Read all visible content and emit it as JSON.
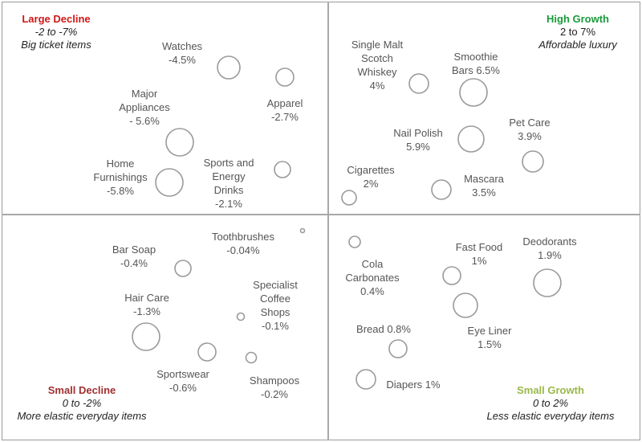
{
  "quadrants": {
    "large_decline": {
      "title": "Large Decline",
      "range": "-2 to -7%",
      "subtitle": "Big ticket items",
      "color": "#d01818"
    },
    "high_growth": {
      "title": "High Growth",
      "range": "2 to 7%",
      "subtitle": "Affordable luxury",
      "color": "#1a9a3a"
    },
    "small_decline": {
      "title": "Small Decline",
      "range": "0 to -2%",
      "subtitle": "More elastic everyday items",
      "color": "#a03030"
    },
    "small_growth": {
      "title": "Small Growth",
      "range": "0 to 2%",
      "subtitle": "Less elastic everyday items",
      "color": "#9ab84a"
    }
  },
  "items": {
    "watches": {
      "lines": [
        "Watches",
        "-4.5%"
      ]
    },
    "apparel": {
      "lines": [
        "Apparel",
        "-2.7%"
      ]
    },
    "major_appliances": {
      "lines": [
        "Major",
        "Appliances",
        "- 5.6%"
      ]
    },
    "home_furnishings": {
      "lines": [
        "Home",
        "Furnishings",
        "-5.8%"
      ]
    },
    "sports_energy_drinks": {
      "lines": [
        "Sports and",
        "Energy",
        "Drinks",
        "-2.1%"
      ]
    },
    "scotch_whiskey": {
      "lines": [
        "Single Malt",
        "Scotch",
        "Whiskey",
        "4%"
      ]
    },
    "smoothie_bars": {
      "lines": [
        "Smoothie",
        "Bars 6.5%"
      ]
    },
    "nail_polish": {
      "lines": [
        "Nail Polish",
        "5.9%"
      ]
    },
    "pet_care": {
      "lines": [
        "Pet Care",
        "3.9%"
      ]
    },
    "cigarettes": {
      "lines": [
        "Cigarettes",
        "2%"
      ]
    },
    "mascara": {
      "lines": [
        "Mascara",
        "3.5%"
      ]
    },
    "toothbrushes": {
      "lines": [
        "Toothbrushes",
        "-0.04%"
      ]
    },
    "bar_soap": {
      "lines": [
        "Bar Soap",
        "-0.4%"
      ]
    },
    "hair_care": {
      "lines": [
        "Hair Care",
        "-1.3%"
      ]
    },
    "specialist_coffee": {
      "lines": [
        "Specialist",
        "Coffee",
        "Shops",
        "-0.1%"
      ]
    },
    "sportswear": {
      "lines": [
        "Sportswear",
        "-0.6%"
      ]
    },
    "shampoos": {
      "lines": [
        "Shampoos",
        "-0.2%"
      ]
    },
    "cola_carbonates": {
      "lines": [
        "Cola",
        "Carbonates",
        "0.4%"
      ]
    },
    "fast_food": {
      "lines": [
        "Fast Food",
        "1%"
      ]
    },
    "deodorants": {
      "lines": [
        "Deodorants",
        "1.9%"
      ]
    },
    "bread": {
      "lines": [
        "Bread 0.8%"
      ]
    },
    "eye_liner": {
      "lines": [
        "Eye Liner",
        "1.5%"
      ]
    },
    "diapers": {
      "lines": [
        "Diapers 1%"
      ]
    }
  }
}
